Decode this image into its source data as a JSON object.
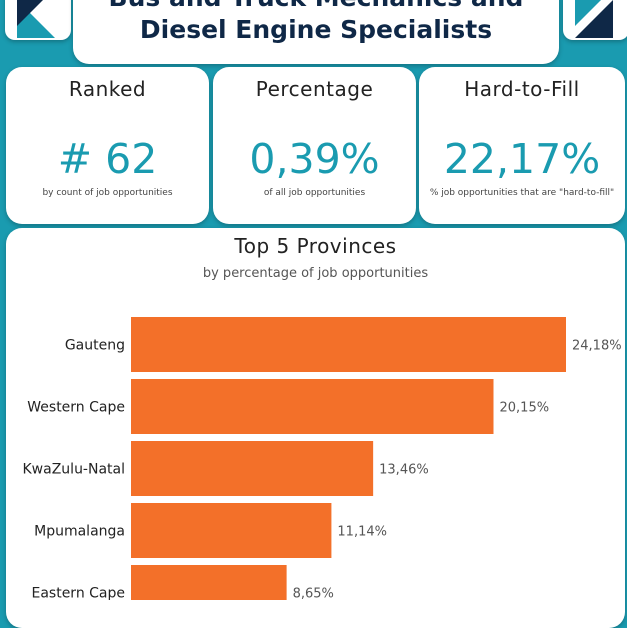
{
  "header": {
    "title_line1": "Bus and Truck Mechanics and",
    "title_line2": "Diesel Engine Specialists"
  },
  "nav": {
    "back_icon": "back-arrow-icon",
    "forward_icon": "forward-arrow-icon"
  },
  "kpis": [
    {
      "label": "Ranked",
      "value": "# 62",
      "sub": "by count of job opportunities"
    },
    {
      "label": "Percentage",
      "value": "0,39%",
      "sub": "of all job opportunities"
    },
    {
      "label": "Hard-to-Fill",
      "value": "22,17%",
      "sub": "% job opportunities that are \"hard-to-fill\""
    }
  ],
  "colors": {
    "background": "#1a9bb0",
    "bar": "#f37029",
    "accent": "#1a9bb0",
    "title": "#0f2847"
  },
  "chart_data": {
    "type": "bar",
    "orientation": "horizontal",
    "title": "Top 5 Provinces",
    "subtitle": "by percentage of job opportunities",
    "categories": [
      "Gauteng",
      "Western Cape",
      "KwaZulu-Natal",
      "Mpumalanga",
      "Eastern Cape"
    ],
    "values": [
      24.18,
      20.15,
      13.46,
      11.14,
      8.65
    ],
    "labels": [
      "24,18%",
      "20,15%",
      "13,46%",
      "11,14%",
      "8,65%"
    ],
    "xlim": [
      0,
      24.18
    ],
    "grid": false,
    "legend": "none"
  }
}
